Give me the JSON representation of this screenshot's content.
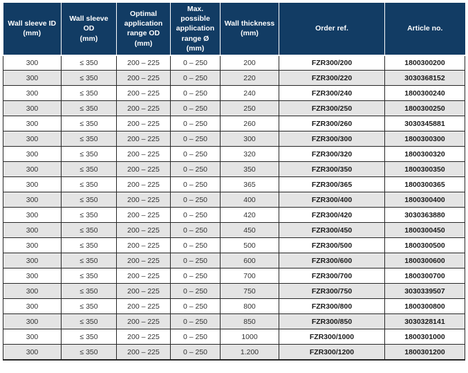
{
  "colors": {
    "header_bg": "#123c64",
    "header_fg": "#ffffff",
    "row_alt_bg": "#e4e4e4",
    "row_bg": "#ffffff",
    "border": "#262626"
  },
  "table": {
    "columns": [
      "Wall sleeve ID\n(mm)",
      "Wall sleeve OD\n(mm)",
      "Optimal\napplication\nrange OD\n(mm)",
      "Max. possible\napplication\nrange Ø (mm)",
      "Wall thickness\n(mm)",
      "Order ref.",
      "Article no."
    ],
    "rows": [
      [
        "300",
        "≤ 350",
        "200 – 225",
        "0 – 250",
        "200",
        "FZR300/200",
        "1800300200"
      ],
      [
        "300",
        "≤ 350",
        "200 – 225",
        "0 – 250",
        "220",
        "FZR300/220",
        "3030368152"
      ],
      [
        "300",
        "≤ 350",
        "200 – 225",
        "0 – 250",
        "240",
        "FZR300/240",
        "1800300240"
      ],
      [
        "300",
        "≤ 350",
        "200 – 225",
        "0 – 250",
        "250",
        "FZR300/250",
        "1800300250"
      ],
      [
        "300",
        "≤ 350",
        "200 – 225",
        "0 – 250",
        "260",
        "FZR300/260",
        "3030345881"
      ],
      [
        "300",
        "≤ 350",
        "200 – 225",
        "0 – 250",
        "300",
        "FZR300/300",
        "1800300300"
      ],
      [
        "300",
        "≤ 350",
        "200 – 225",
        "0 – 250",
        "320",
        "FZR300/320",
        "1800300320"
      ],
      [
        "300",
        "≤ 350",
        "200 – 225",
        "0 – 250",
        "350",
        "FZR300/350",
        "1800300350"
      ],
      [
        "300",
        "≤ 350",
        "200 – 225",
        "0 – 250",
        "365",
        "FZR300/365",
        "1800300365"
      ],
      [
        "300",
        "≤ 350",
        "200 – 225",
        "0 – 250",
        "400",
        "FZR300/400",
        "1800300400"
      ],
      [
        "300",
        "≤ 350",
        "200 – 225",
        "0 – 250",
        "420",
        "FZR300/420",
        "3030363880"
      ],
      [
        "300",
        "≤ 350",
        "200 – 225",
        "0 – 250",
        "450",
        "FZR300/450",
        "1800300450"
      ],
      [
        "300",
        "≤ 350",
        "200 – 225",
        "0 – 250",
        "500",
        "FZR300/500",
        "1800300500"
      ],
      [
        "300",
        "≤ 350",
        "200 – 225",
        "0 – 250",
        "600",
        "FZR300/600",
        "1800300600"
      ],
      [
        "300",
        "≤ 350",
        "200 – 225",
        "0 – 250",
        "700",
        "FZR300/700",
        "1800300700"
      ],
      [
        "300",
        "≤ 350",
        "200 – 225",
        "0 – 250",
        "750",
        "FZR300/750",
        "3030339507"
      ],
      [
        "300",
        "≤ 350",
        "200 – 225",
        "0 – 250",
        "800",
        "FZR300/800",
        "1800300800"
      ],
      [
        "300",
        "≤ 350",
        "200 – 225",
        "0 – 250",
        "850",
        "FZR300/850",
        "3030328141"
      ],
      [
        "300",
        "≤ 350",
        "200 – 225",
        "0 – 250",
        "1000",
        "FZR300/1000",
        "1800301000"
      ],
      [
        "300",
        "≤ 350",
        "200 – 225",
        "0 – 250",
        "1.200",
        "FZR300/1200",
        "1800301200"
      ]
    ]
  }
}
